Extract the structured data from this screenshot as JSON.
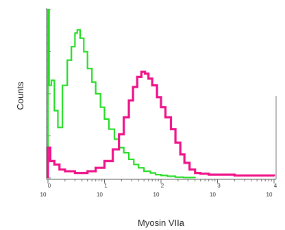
{
  "chart_data": {
    "type": "line",
    "title": "",
    "xlabel": "Myosin VIIa",
    "ylabel": "Counts",
    "x_scale": "log",
    "xlim": [
      1,
      10000
    ],
    "xtick_labels": [
      {
        "base": "10",
        "exp": "0",
        "value": 1
      },
      {
        "base": "10",
        "exp": "1",
        "value": 10
      },
      {
        "base": "10",
        "exp": "2",
        "value": 100
      },
      {
        "base": "10",
        "exp": "3",
        "value": 1000
      },
      {
        "base": "10",
        "exp": "4",
        "value": 10000
      }
    ],
    "ylim": [
      0,
      100
    ],
    "grid": false,
    "series": [
      {
        "color": "#22dd22",
        "points": [
          [
            1.0,
            100
          ],
          [
            1.05,
            55
          ],
          [
            1.15,
            58
          ],
          [
            1.3,
            40
          ],
          [
            1.5,
            30
          ],
          [
            1.8,
            55
          ],
          [
            2.2,
            70
          ],
          [
            2.6,
            78
          ],
          [
            3.0,
            86
          ],
          [
            3.3,
            88
          ],
          [
            3.7,
            83
          ],
          [
            4.3,
            75
          ],
          [
            5.0,
            65
          ],
          [
            6.0,
            57
          ],
          [
            7.0,
            50
          ],
          [
            8.5,
            42
          ],
          [
            10,
            35
          ],
          [
            12,
            29
          ],
          [
            15,
            23
          ],
          [
            18,
            18
          ],
          [
            22,
            15
          ],
          [
            27,
            11
          ],
          [
            33,
            8
          ],
          [
            40,
            6
          ],
          [
            50,
            4
          ],
          [
            65,
            3
          ],
          [
            80,
            2
          ],
          [
            100,
            1.5
          ],
          [
            130,
            1
          ],
          [
            180,
            0.5
          ],
          [
            250,
            0.3
          ],
          [
            400,
            0
          ]
        ]
      },
      {
        "color": "#ee1188",
        "points": [
          [
            1.0,
            18
          ],
          [
            1.1,
            10
          ],
          [
            1.3,
            8
          ],
          [
            1.6,
            5
          ],
          [
            2.0,
            4
          ],
          [
            3.0,
            3
          ],
          [
            5.0,
            4
          ],
          [
            7.0,
            6
          ],
          [
            10,
            10
          ],
          [
            14,
            17
          ],
          [
            18,
            26
          ],
          [
            22,
            36
          ],
          [
            27,
            46
          ],
          [
            32,
            54
          ],
          [
            38,
            60
          ],
          [
            45,
            63
          ],
          [
            52,
            62
          ],
          [
            60,
            59
          ],
          [
            70,
            55
          ],
          [
            85,
            48
          ],
          [
            100,
            42
          ],
          [
            120,
            36
          ],
          [
            150,
            29
          ],
          [
            180,
            21
          ],
          [
            220,
            14
          ],
          [
            260,
            9
          ],
          [
            320,
            5
          ],
          [
            400,
            3
          ],
          [
            500,
            2.5
          ],
          [
            700,
            2
          ],
          [
            1000,
            2
          ],
          [
            2000,
            1.5
          ],
          [
            4000,
            1.5
          ],
          [
            10000,
            1
          ]
        ]
      }
    ]
  }
}
